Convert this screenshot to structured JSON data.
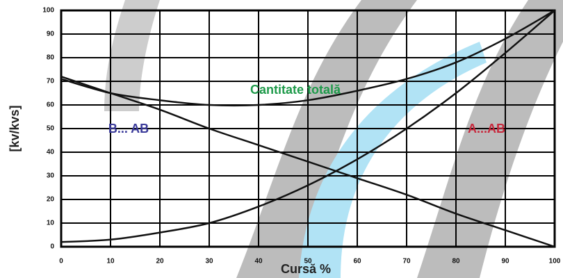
{
  "chart_data": {
    "type": "line",
    "x_label": "Cursă %",
    "y_label": "[kv/kvs]",
    "x": [
      0,
      10,
      20,
      30,
      40,
      50,
      60,
      70,
      80,
      90,
      100
    ],
    "series": [
      {
        "name": "Cantitate totală",
        "color": "#111111",
        "values": [
          71,
          65,
          62,
          60,
          60,
          62,
          66,
          71,
          78,
          88,
          100
        ]
      },
      {
        "name": "B... AB",
        "color": "#111111",
        "values": [
          72,
          65,
          58,
          50,
          43,
          36,
          29,
          22,
          14,
          7,
          0
        ]
      },
      {
        "name": "A...AB",
        "color": "#111111",
        "values": [
          2,
          3,
          6,
          10,
          17,
          26,
          37,
          50,
          65,
          82,
          100
        ]
      }
    ],
    "xlim": [
      0,
      100
    ],
    "xticks": [
      0,
      10,
      20,
      30,
      40,
      50,
      60,
      70,
      80,
      90,
      100
    ],
    "ylim": [
      0,
      100
    ],
    "yticks": [
      0,
      10,
      20,
      30,
      40,
      50,
      60,
      70,
      80,
      90,
      100
    ],
    "grid": true
  }
}
